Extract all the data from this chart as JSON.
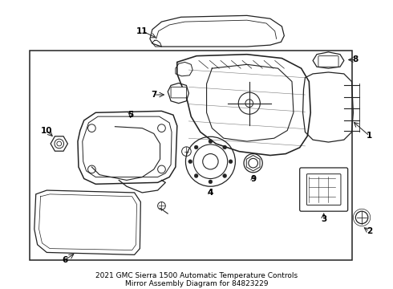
{
  "bg_color": "#ffffff",
  "line_color": "#222222",
  "label_color": "#000000",
  "fig_width": 4.9,
  "fig_height": 3.6,
  "dpi": 100,
  "title": "2021 GMC Sierra 1500 Automatic Temperature Controls\nMirror Assembly Diagram for 84823229",
  "title_fontsize": 6.5
}
